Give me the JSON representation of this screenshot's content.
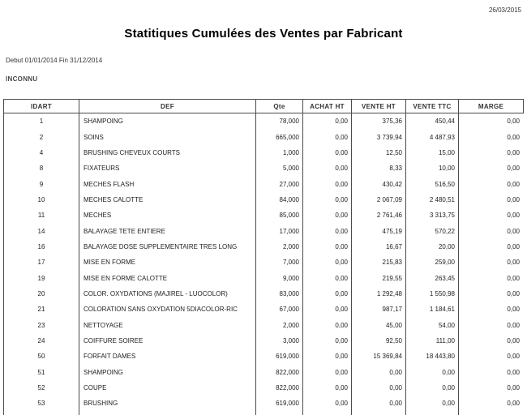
{
  "report": {
    "print_date": "26/03/2015",
    "title": "Statitiques Cumulées des Ventes par Fabricant",
    "period": "Debut 01/01/2014 Fin 31/12/2014",
    "group": "INCONNU",
    "columns": [
      "IDART",
      "DEF",
      "Qte",
      "ACHAT HT",
      "VENTE HT",
      "VENTE TTC",
      "MARGE"
    ],
    "rows": [
      [
        "1",
        "SHAMPOING",
        "78,000",
        "0,00",
        "375,36",
        "450,44",
        "0,00"
      ],
      [
        "2",
        "SOINS",
        "665,000",
        "0,00",
        "3 739,94",
        "4 487,93",
        "0,00"
      ],
      [
        "4",
        "BRUSHING CHEVEUX COURTS",
        "1,000",
        "0,00",
        "12,50",
        "15,00",
        "0,00"
      ],
      [
        "8",
        "FIXATEURS",
        "5,000",
        "0,00",
        "8,33",
        "10,00",
        "0,00"
      ],
      [
        "9",
        "MECHES FLASH",
        "27,000",
        "0,00",
        "430,42",
        "516,50",
        "0,00"
      ],
      [
        "10",
        "MECHES CALOTTE",
        "84,000",
        "0,00",
        "2 067,09",
        "2 480,51",
        "0,00"
      ],
      [
        "11",
        "MECHES",
        "85,000",
        "0,00",
        "2 761,46",
        "3 313,75",
        "0,00"
      ],
      [
        "14",
        "BALAYAGE TETE ENTIERE",
        "17,000",
        "0,00",
        "475,19",
        "570,22",
        "0,00"
      ],
      [
        "16",
        "BALAYAGE DOSE SUPPLEMENTAIRE TRES LONG",
        "2,000",
        "0,00",
        "16,67",
        "20,00",
        "0,00"
      ],
      [
        "17",
        "MISE EN FORME",
        "7,000",
        "0,00",
        "215,83",
        "259,00",
        "0,00"
      ],
      [
        "19",
        "MISE EN FORME CALOTTE",
        "9,000",
        "0,00",
        "219,55",
        "263,45",
        "0,00"
      ],
      [
        "20",
        "COLOR. OXYDATIONS (MAJIREL - LUOCOLOR)",
        "83,000",
        "0,00",
        "1 292,48",
        "1 550,98",
        "0,00"
      ],
      [
        "21",
        "COLORATION SANS OXYDATION 5DIACOLOR-RIC",
        "67,000",
        "0,00",
        "987,17",
        "1 184,61",
        "0,00"
      ],
      [
        "23",
        "NETTOYAGE",
        "2,000",
        "0,00",
        "45,00",
        "54,00",
        "0,00"
      ],
      [
        "24",
        "COIFFURE SOIREE",
        "3,000",
        "0,00",
        "92,50",
        "111,00",
        "0,00"
      ],
      [
        "50",
        "FORFAIT DAMES",
        "619,000",
        "0,00",
        "15 369,84",
        "18 443,80",
        "0,00"
      ],
      [
        "51",
        "SHAMPOING",
        "822,000",
        "0,00",
        "0,00",
        "0,00",
        "0,00"
      ],
      [
        "52",
        "COUPE",
        "822,000",
        "0,00",
        "0,00",
        "0,00",
        "0,00"
      ],
      [
        "53",
        "BRUSHING",
        "619,000",
        "0,00",
        "0,00",
        "0,00",
        "0,00"
      ]
    ]
  }
}
